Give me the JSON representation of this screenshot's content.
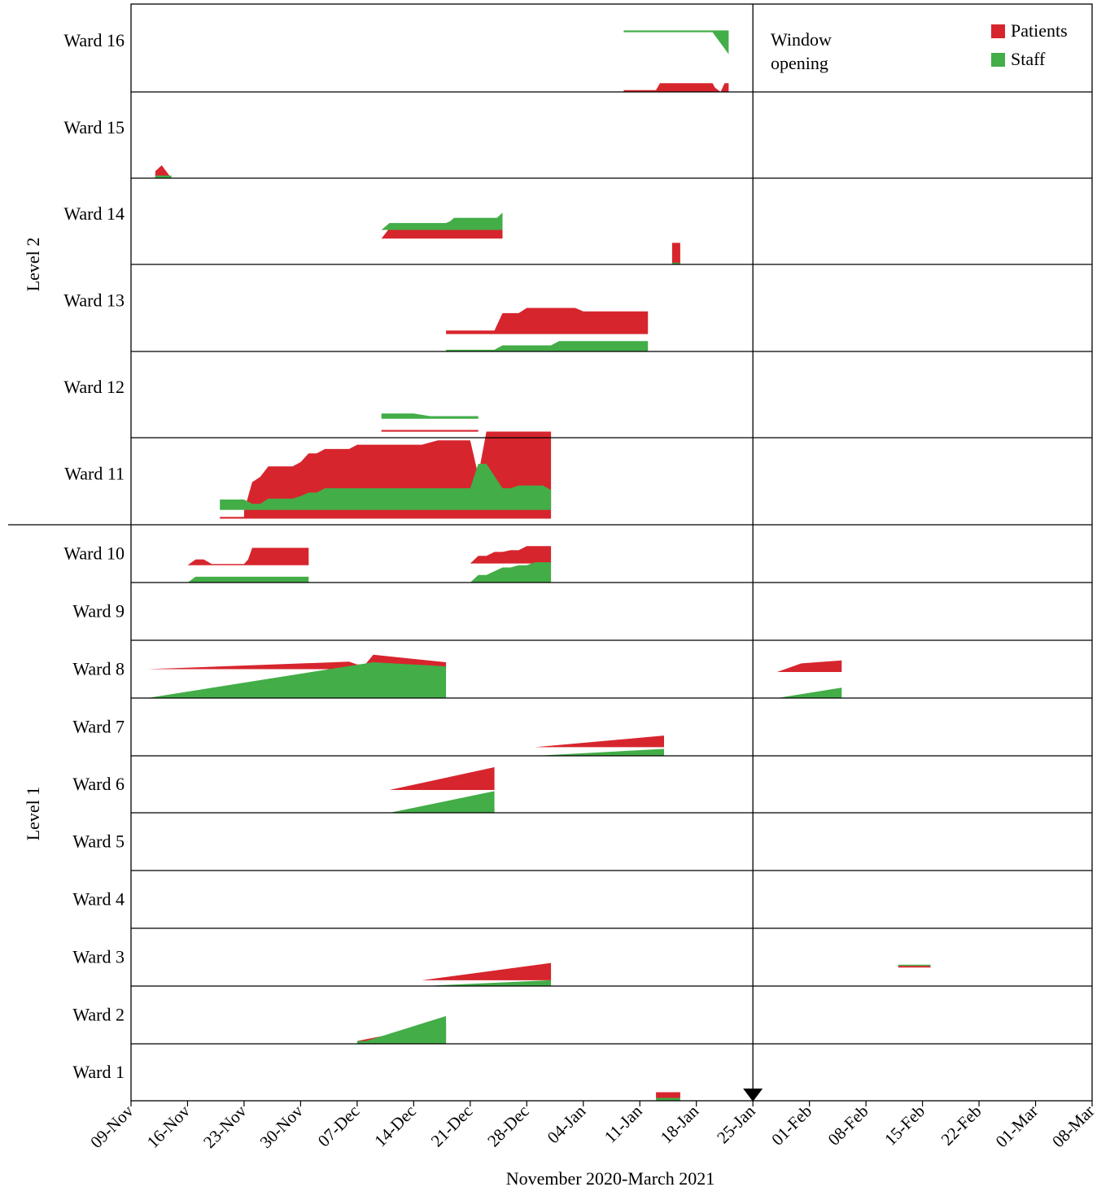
{
  "chart_data": {
    "type": "area",
    "xlabel": "November 2020-March 2021",
    "x_ticks": [
      "09-Nov",
      "16-Nov",
      "23-Nov",
      "30-Nov",
      "07-Dec",
      "14-Dec",
      "21-Dec",
      "28-Dec",
      "04-Jan",
      "11-Jan",
      "18-Jan",
      "25-Jan",
      "01-Feb",
      "08-Feb",
      "15-Feb",
      "22-Feb",
      "01-Mar",
      "08-Mar"
    ],
    "x_range_days": [
      0,
      119
    ],
    "groups": [
      {
        "label": "Level 2",
        "wards": [
          "Ward 16",
          "Ward 15",
          "Ward 14",
          "Ward 13",
          "Ward 12",
          "Ward 11"
        ]
      },
      {
        "label": "Level 1",
        "wards": [
          "Ward 10",
          "Ward 9",
          "Ward 8",
          "Ward 7",
          "Ward 6",
          "Ward 5",
          "Ward 4",
          "Ward 3",
          "Ward 2",
          "Ward 1"
        ]
      }
    ],
    "legend": {
      "position": "top-right",
      "entries": [
        {
          "name": "Patients",
          "color": "#d7252d"
        },
        {
          "name": "Staff",
          "color": "#43ad48"
        }
      ]
    },
    "annotation": {
      "text_line1": "Window",
      "text_line2": "opening",
      "date": "25-Jan",
      "day": 77
    },
    "scale_note": "Band heights show relative case counts (0-1 of ward row height).",
    "series": [
      {
        "ward": "Ward 16",
        "type": "Patients",
        "points": [
          [
            61,
            0
          ],
          [
            61,
            0.02
          ],
          [
            65,
            0.02
          ],
          [
            65.5,
            0.1
          ],
          [
            72,
            0.1
          ],
          [
            72.3,
            0.05
          ],
          [
            73,
            0
          ],
          [
            73.5,
            0.1
          ],
          [
            74,
            0.1
          ],
          [
            74,
            0
          ]
        ]
      },
      {
        "ward": "Ward 16",
        "type": "Staff",
        "dir": "down",
        "offset": 0.3,
        "points": [
          [
            61,
            0
          ],
          [
            61,
            0.02
          ],
          [
            72,
            0.02
          ],
          [
            74,
            0.27
          ],
          [
            74,
            0
          ]
        ]
      },
      {
        "ward": "Ward 15",
        "type": "Patients",
        "points": [
          [
            3,
            0
          ],
          [
            3,
            0.08
          ],
          [
            3.8,
            0.15
          ],
          [
            5,
            0
          ]
        ]
      },
      {
        "ward": "Ward 15",
        "type": "Staff",
        "points": [
          [
            3,
            0
          ],
          [
            3,
            0.03
          ],
          [
            5,
            0.03
          ],
          [
            5,
            0
          ]
        ]
      },
      {
        "ward": "Ward 14",
        "type": "Patients",
        "dir": "up",
        "offset": 0.3,
        "points": [
          [
            31,
            0
          ],
          [
            32,
            0.12
          ],
          [
            36,
            0.12
          ],
          [
            36,
            0.15
          ],
          [
            39,
            0.15
          ],
          [
            39,
            0.18
          ],
          [
            40,
            0.2
          ],
          [
            46,
            0.2
          ],
          [
            46,
            0.25
          ],
          [
            46,
            0
          ]
        ]
      },
      {
        "ward": "Ward 14",
        "type": "Staff",
        "dir": "up",
        "offset": 0.4,
        "points": [
          [
            31,
            0
          ],
          [
            32,
            0.08
          ],
          [
            39,
            0.08
          ],
          [
            39.5,
            0.1
          ],
          [
            40,
            0.14
          ],
          [
            45.3,
            0.14
          ],
          [
            46,
            0.2
          ],
          [
            46,
            0
          ]
        ]
      },
      {
        "ward": "Ward 14",
        "type": "Patients",
        "points": [
          [
            67,
            0
          ],
          [
            67,
            0.25
          ],
          [
            68,
            0.25
          ],
          [
            68,
            0
          ]
        ]
      },
      {
        "ward": "Ward 14",
        "type": "Staff",
        "points": [
          [
            67,
            0
          ],
          [
            67,
            0.02
          ],
          [
            68,
            0.02
          ],
          [
            68,
            0
          ]
        ]
      },
      {
        "ward": "Ward 13",
        "type": "Patients",
        "dir": "up",
        "offset": 0.2,
        "points": [
          [
            39,
            0
          ],
          [
            39,
            0.04
          ],
          [
            45,
            0.04
          ],
          [
            46,
            0.24
          ],
          [
            48,
            0.24
          ],
          [
            49,
            0.3
          ],
          [
            55,
            0.3
          ],
          [
            56,
            0.26
          ],
          [
            64,
            0.26
          ],
          [
            64,
            0
          ]
        ]
      },
      {
        "ward": "Ward 13",
        "type": "Staff",
        "points": [
          [
            39,
            0
          ],
          [
            39,
            0.02
          ],
          [
            45,
            0.02
          ],
          [
            46,
            0.07
          ],
          [
            52,
            0.07
          ],
          [
            53,
            0.12
          ],
          [
            64,
            0.12
          ],
          [
            64,
            0
          ]
        ]
      },
      {
        "ward": "Ward 12",
        "type": "Patients",
        "dir": "up",
        "offset": 0.07,
        "points": [
          [
            31,
            0
          ],
          [
            31,
            0.02
          ],
          [
            43,
            0.02
          ],
          [
            43,
            0
          ]
        ]
      },
      {
        "ward": "Ward 12",
        "type": "Staff",
        "dir": "up",
        "offset": 0.22,
        "points": [
          [
            31,
            0
          ],
          [
            31,
            0.06
          ],
          [
            35,
            0.06
          ],
          [
            37,
            0.03
          ],
          [
            43,
            0.03
          ],
          [
            43,
            0
          ]
        ]
      },
      {
        "ward": "Ward 11",
        "type": "Patients",
        "dir": "up",
        "offset": 0.07,
        "points": [
          [
            11,
            0
          ],
          [
            11,
            0.02
          ],
          [
            14,
            0.02
          ],
          [
            14,
            0.09
          ],
          [
            15,
            0.42
          ],
          [
            16,
            0.48
          ],
          [
            17,
            0.6
          ],
          [
            20,
            0.6
          ],
          [
            21,
            0.65
          ],
          [
            22,
            0.75
          ],
          [
            23,
            0.75
          ],
          [
            24,
            0.8
          ],
          [
            27,
            0.8
          ],
          [
            28,
            0.85
          ],
          [
            36,
            0.85
          ],
          [
            38,
            0.9
          ],
          [
            42,
            0.9
          ],
          [
            43,
            0.5
          ],
          [
            44,
            1.0
          ],
          [
            52,
            1.0
          ],
          [
            52,
            0
          ]
        ]
      },
      {
        "ward": "Ward 11",
        "type": "Staff",
        "dir": "up",
        "offset": 0.17,
        "points": [
          [
            11,
            0
          ],
          [
            11,
            0.12
          ],
          [
            14,
            0.12
          ],
          [
            15,
            0.07
          ],
          [
            16,
            0.07
          ],
          [
            17,
            0.13
          ],
          [
            20,
            0.13
          ],
          [
            21,
            0.16
          ],
          [
            22,
            0.2
          ],
          [
            23,
            0.2
          ],
          [
            24,
            0.25
          ],
          [
            42,
            0.25
          ],
          [
            43,
            0.53
          ],
          [
            44,
            0.53
          ],
          [
            46,
            0.25
          ],
          [
            47,
            0.25
          ],
          [
            48,
            0.28
          ],
          [
            51,
            0.28
          ],
          [
            52,
            0.23
          ],
          [
            52,
            0
          ]
        ]
      },
      {
        "ward": "Ward 10",
        "type": "Patients",
        "dir": "up",
        "offset": 0.3,
        "points": [
          [
            7,
            0
          ],
          [
            8,
            0.1
          ],
          [
            9,
            0.1
          ],
          [
            10,
            0.02
          ],
          [
            14,
            0.02
          ],
          [
            14.5,
            0.1
          ],
          [
            15,
            0.3
          ],
          [
            22,
            0.3
          ],
          [
            22,
            0
          ]
        ]
      },
      {
        "ward": "Ward 10",
        "type": "Staff",
        "points": [
          [
            7,
            0
          ],
          [
            8,
            0.1
          ],
          [
            22,
            0.1
          ],
          [
            22,
            0
          ]
        ]
      },
      {
        "ward": "Ward 10",
        "type": "Patients",
        "dir": "up",
        "offset": 0.33,
        "points": [
          [
            42,
            0
          ],
          [
            43,
            0.13
          ],
          [
            44,
            0.13
          ],
          [
            45,
            0.2
          ],
          [
            46,
            0.2
          ],
          [
            47,
            0.23
          ],
          [
            48,
            0.23
          ],
          [
            49,
            0.3
          ],
          [
            52,
            0.3
          ],
          [
            52,
            0
          ]
        ]
      },
      {
        "ward": "Ward 10",
        "type": "Staff",
        "points": [
          [
            42,
            0
          ],
          [
            43,
            0.13
          ],
          [
            44,
            0.13
          ],
          [
            46,
            0.26
          ],
          [
            47,
            0.26
          ],
          [
            48,
            0.3
          ],
          [
            49,
            0.3
          ],
          [
            50,
            0.35
          ],
          [
            52,
            0.35
          ],
          [
            52,
            0
          ]
        ]
      },
      {
        "ward": "Ward 8",
        "type": "Patients",
        "dir": "up",
        "offset": 0.5,
        "points": [
          [
            2,
            0
          ],
          [
            27,
            0.13
          ],
          [
            28,
            0.08
          ],
          [
            29,
            0.08
          ],
          [
            30,
            0.25
          ],
          [
            39,
            0.12
          ],
          [
            39,
            0
          ]
        ]
      },
      {
        "ward": "Ward 8",
        "type": "Staff",
        "points": [
          [
            2,
            0
          ],
          [
            30,
            0.62
          ],
          [
            39,
            0.55
          ],
          [
            39,
            0
          ]
        ]
      },
      {
        "ward": "Ward 8",
        "type": "Patients",
        "dir": "up",
        "offset": 0.45,
        "points": [
          [
            80,
            0
          ],
          [
            83,
            0.15
          ],
          [
            88,
            0.2
          ],
          [
            88,
            0
          ]
        ]
      },
      {
        "ward": "Ward 8",
        "type": "Staff",
        "points": [
          [
            80,
            0
          ],
          [
            88,
            0.18
          ],
          [
            88,
            0
          ]
        ]
      },
      {
        "ward": "Ward 7",
        "type": "Patients",
        "dir": "up",
        "offset": 0.15,
        "points": [
          [
            50,
            0
          ],
          [
            66,
            0.2
          ],
          [
            66,
            0
          ]
        ]
      },
      {
        "ward": "Ward 7",
        "type": "Staff",
        "points": [
          [
            50,
            0
          ],
          [
            66,
            0.12
          ],
          [
            66,
            0
          ]
        ]
      },
      {
        "ward": "Ward 6",
        "type": "Patients",
        "dir": "up",
        "offset": 0.4,
        "points": [
          [
            32,
            0
          ],
          [
            45,
            0.4
          ],
          [
            45,
            0
          ]
        ]
      },
      {
        "ward": "Ward 6",
        "type": "Staff",
        "points": [
          [
            32,
            0
          ],
          [
            45,
            0.38
          ],
          [
            45,
            0
          ]
        ]
      },
      {
        "ward": "Ward 3",
        "type": "Patients",
        "dir": "up",
        "offset": 0.1,
        "points": [
          [
            36,
            0
          ],
          [
            52,
            0.3
          ],
          [
            52,
            0
          ]
        ]
      },
      {
        "ward": "Ward 3",
        "type": "Staff",
        "points": [
          [
            36,
            0
          ],
          [
            52,
            0.1
          ],
          [
            52,
            0
          ]
        ]
      },
      {
        "ward": "Ward 3",
        "type": "Patients",
        "dir": "up",
        "offset": 0.32,
        "points": [
          [
            95,
            0
          ],
          [
            95,
            0.03
          ],
          [
            99,
            0.03
          ],
          [
            99,
            0
          ]
        ]
      },
      {
        "ward": "Ward 3",
        "type": "Staff",
        "dir": "up",
        "offset": 0.35,
        "points": [
          [
            95,
            0
          ],
          [
            95,
            0.02
          ],
          [
            99,
            0.02
          ],
          [
            99,
            0
          ]
        ]
      },
      {
        "ward": "Ward 2",
        "type": "Patients",
        "dir": "up",
        "offset": 0.05,
        "points": [
          [
            28,
            0
          ],
          [
            39,
            0.3
          ],
          [
            39,
            0
          ]
        ]
      },
      {
        "ward": "Ward 2",
        "type": "Staff",
        "points": [
          [
            28,
            0
          ],
          [
            39,
            0.48
          ],
          [
            39,
            0
          ]
        ]
      },
      {
        "ward": "Ward 2",
        "type": "Staff",
        "points": [
          [
            28,
            0
          ],
          [
            28,
            0.05
          ],
          [
            39,
            0.05
          ],
          [
            39,
            0
          ]
        ]
      },
      {
        "ward": "Ward 1",
        "type": "Patients",
        "dir": "up",
        "offset": 0.05,
        "points": [
          [
            65,
            0
          ],
          [
            65,
            0.1
          ],
          [
            68,
            0.1
          ],
          [
            68,
            0
          ]
        ]
      },
      {
        "ward": "Ward 1",
        "type": "Staff",
        "points": [
          [
            65,
            0
          ],
          [
            65,
            0.05
          ],
          [
            68,
            0.05
          ],
          [
            68,
            0
          ]
        ]
      }
    ]
  }
}
